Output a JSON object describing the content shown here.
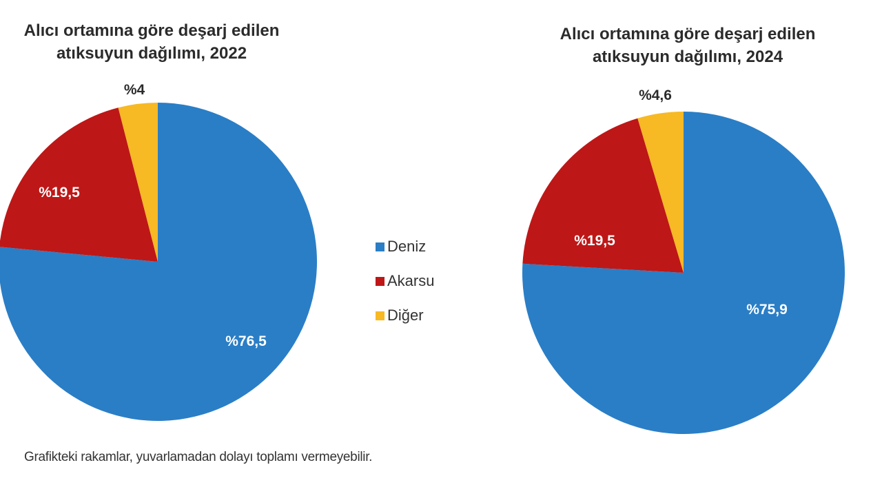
{
  "colors": {
    "deniz": "#2a7ec6",
    "akarsu": "#be1717",
    "diger": "#f7b924"
  },
  "legend": {
    "items": [
      {
        "label": "Deniz",
        "color": "#2a7ec6"
      },
      {
        "label": "Akarsu",
        "color": "#be1717"
      },
      {
        "label": "Diğer",
        "color": "#f7b924"
      }
    ]
  },
  "footnote": "Grafikteki rakamlar, yuvarlamadan dolayı toplamı vermeyebilir.",
  "charts": [
    {
      "title_line1": "Alıcı ortamına göre deşarj edilen",
      "title_line2": "atıksuyun dağılımı, 2022",
      "labels": {
        "deniz": "%76,5",
        "akarsu": "%19,5",
        "diger": "%4"
      }
    },
    {
      "title_line1": "Alıcı ortamına göre deşarj edilen",
      "title_line2": "atıksuyun dağılımı, 2024",
      "labels": {
        "deniz": "%75,9",
        "akarsu": "%19,5",
        "diger": "%4,6"
      }
    }
  ],
  "chart_data": [
    {
      "type": "pie",
      "title": "Alıcı ortamına göre deşarj edilen atıksuyun dağılımı, 2022",
      "categories": [
        "Deniz",
        "Akarsu",
        "Diğer"
      ],
      "values": [
        76.5,
        19.5,
        4.0
      ],
      "labels": [
        "%76,5",
        "%19,5",
        "%4"
      ],
      "colors": [
        "#2a7ec6",
        "#be1717",
        "#f7b924"
      ],
      "legend_position": "between charts (shared)"
    },
    {
      "type": "pie",
      "title": "Alıcı ortamına göre deşarj edilen atıksuyun dağılımı, 2024",
      "categories": [
        "Deniz",
        "Akarsu",
        "Diğer"
      ],
      "values": [
        75.9,
        19.5,
        4.6
      ],
      "labels": [
        "%75,9",
        "%19,5",
        "%4,6"
      ],
      "colors": [
        "#2a7ec6",
        "#be1717",
        "#f7b924"
      ],
      "legend_position": "between charts (shared)"
    }
  ]
}
